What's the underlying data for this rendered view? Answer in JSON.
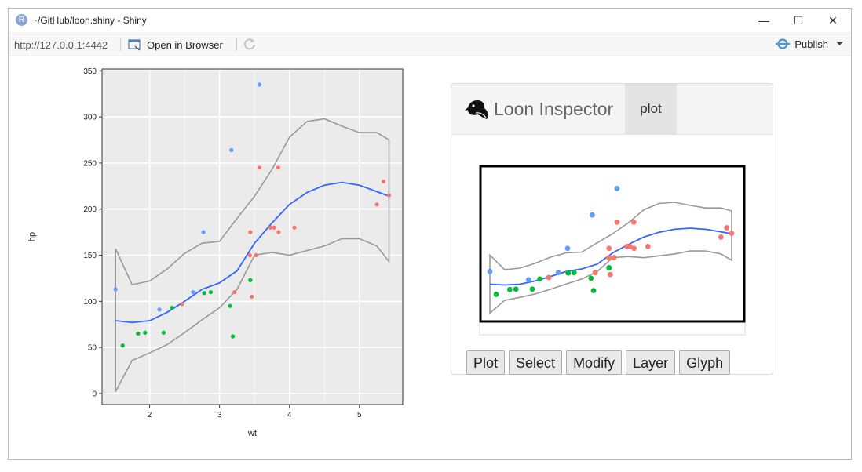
{
  "window": {
    "title": "~/GitHub/loon.shiny - Shiny",
    "app_icon_letter": "R",
    "minimize_glyph": "—",
    "maximize_glyph": "☐",
    "close_glyph": "✕"
  },
  "toolbar": {
    "url": "http://127.0.0.1:4442",
    "open_in_browser": "Open in Browser",
    "publish": "Publish"
  },
  "inspector": {
    "title": "Loon Inspector",
    "tab_label": "plot",
    "buttons": [
      "Plot",
      "Select",
      "Modify",
      "Layer",
      "Glyph"
    ]
  },
  "colors": {
    "series_a": "#f8766d",
    "series_b": "#00ba38",
    "series_c": "#619cff",
    "smooth_line": "#3366ff",
    "ci_band": "#999999",
    "panel_bg": "#ebebeb"
  },
  "chart_data": {
    "type": "scatter",
    "xlabel": "wt",
    "ylabel": "hp",
    "xlim": [
      1.32,
      5.62
    ],
    "ylim": [
      -12,
      352
    ],
    "x_ticks": [
      2,
      3,
      4,
      5
    ],
    "y_ticks": [
      0,
      50,
      100,
      150,
      200,
      250,
      300,
      350
    ],
    "grid": true,
    "points": [
      {
        "wt": 2.62,
        "hp": 110,
        "color": "#619cff"
      },
      {
        "wt": 2.875,
        "hp": 110,
        "color": "#00ba38"
      },
      {
        "wt": 2.32,
        "hp": 93,
        "color": "#00ba38"
      },
      {
        "wt": 3.215,
        "hp": 110,
        "color": "#f8766d"
      },
      {
        "wt": 3.44,
        "hp": 175,
        "color": "#f8766d"
      },
      {
        "wt": 3.46,
        "hp": 105,
        "color": "#f8766d"
      },
      {
        "wt": 3.57,
        "hp": 245,
        "color": "#f8766d"
      },
      {
        "wt": 3.19,
        "hp": 62,
        "color": "#00ba38"
      },
      {
        "wt": 3.15,
        "hp": 95,
        "color": "#00ba38"
      },
      {
        "wt": 3.44,
        "hp": 123,
        "color": "#00ba38"
      },
      {
        "wt": 3.44,
        "hp": 123,
        "color": "#00ba38"
      },
      {
        "wt": 4.07,
        "hp": 180,
        "color": "#f8766d"
      },
      {
        "wt": 3.73,
        "hp": 180,
        "color": "#f8766d"
      },
      {
        "wt": 3.78,
        "hp": 180,
        "color": "#f8766d"
      },
      {
        "wt": 5.25,
        "hp": 205,
        "color": "#f8766d"
      },
      {
        "wt": 5.424,
        "hp": 215,
        "color": "#f8766d"
      },
      {
        "wt": 5.345,
        "hp": 230,
        "color": "#f8766d"
      },
      {
        "wt": 2.2,
        "hp": 66,
        "color": "#00ba38"
      },
      {
        "wt": 1.615,
        "hp": 52,
        "color": "#00ba38"
      },
      {
        "wt": 1.835,
        "hp": 65,
        "color": "#00ba38"
      },
      {
        "wt": 2.465,
        "hp": 97,
        "color": "#f8766d"
      },
      {
        "wt": 3.52,
        "hp": 150,
        "color": "#f8766d"
      },
      {
        "wt": 3.435,
        "hp": 150,
        "color": "#f8766d"
      },
      {
        "wt": 3.84,
        "hp": 245,
        "color": "#f8766d"
      },
      {
        "wt": 3.845,
        "hp": 175,
        "color": "#f8766d"
      },
      {
        "wt": 1.935,
        "hp": 66,
        "color": "#00ba38"
      },
      {
        "wt": 2.14,
        "hp": 91,
        "color": "#619cff"
      },
      {
        "wt": 1.513,
        "hp": 113,
        "color": "#619cff"
      },
      {
        "wt": 3.17,
        "hp": 264,
        "color": "#619cff"
      },
      {
        "wt": 2.77,
        "hp": 175,
        "color": "#619cff"
      },
      {
        "wt": 3.57,
        "hp": 335,
        "color": "#619cff"
      },
      {
        "wt": 2.78,
        "hp": 109,
        "color": "#00ba38"
      }
    ],
    "smooth": {
      "x": [
        1.513,
        1.75,
        2.0,
        2.25,
        2.5,
        2.75,
        3.0,
        3.25,
        3.5,
        3.75,
        4.0,
        4.25,
        4.5,
        4.75,
        5.0,
        5.25,
        5.424
      ],
      "fit": [
        79,
        77,
        79,
        88,
        100,
        113,
        120,
        133,
        163,
        185,
        205,
        218,
        226,
        229,
        226,
        219,
        214
      ],
      "upper": [
        157,
        118,
        122,
        135,
        152,
        163,
        165,
        190,
        214,
        243,
        278,
        295,
        298,
        290,
        283,
        283,
        275
      ],
      "lower": [
        2,
        36,
        44,
        53,
        66,
        80,
        93,
        113,
        150,
        153,
        150,
        155,
        160,
        168,
        168,
        160,
        143
      ]
    }
  }
}
